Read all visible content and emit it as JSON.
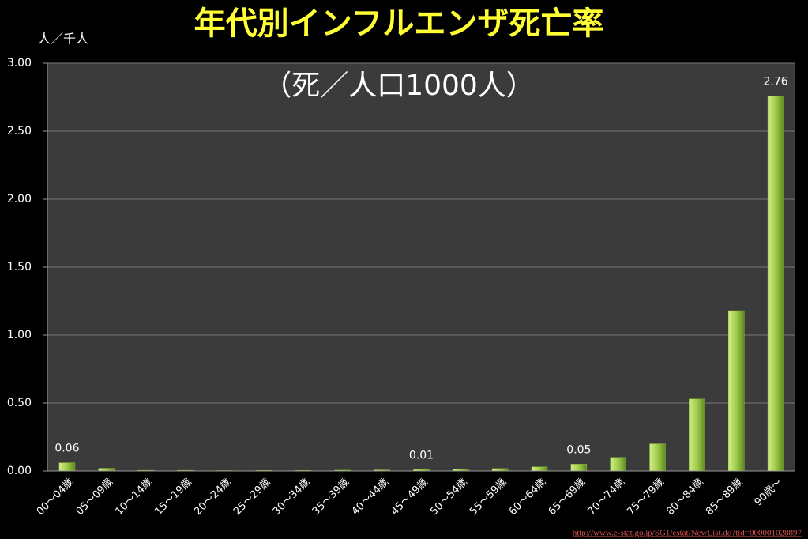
{
  "chart_data": {
    "type": "bar",
    "title": "年代別インフルエンザ死亡率",
    "subtitle": "（死／人口1000人）",
    "y_axis_label": "人／千人",
    "source": "http://www.e-stat.go.jp/SG1/estat/NewList.do?tid=000001028897",
    "categories": [
      "00〜04歳",
      "05〜09歳",
      "10〜14歳",
      "15〜19歳",
      "20〜24歳",
      "25〜29歳",
      "30〜34歳",
      "35〜39歳",
      "40〜44歳",
      "45〜49歳",
      "50〜54歳",
      "55〜59歳",
      "60〜64歳",
      "65〜69歳",
      "70〜74歳",
      "75〜79歳",
      "80〜84歳",
      "85〜89歳",
      "90歳〜"
    ],
    "values": [
      0.06,
      0.02,
      0.005,
      0.005,
      0.003,
      0.004,
      0.004,
      0.006,
      0.008,
      0.01,
      0.012,
      0.018,
      0.03,
      0.05,
      0.1,
      0.2,
      0.53,
      1.18,
      2.76
    ],
    "value_labels": [
      "0.06",
      null,
      null,
      null,
      null,
      null,
      null,
      null,
      null,
      "0.01",
      null,
      null,
      null,
      "0.05",
      null,
      null,
      null,
      null,
      "2.76"
    ],
    "color": "#8fbf3a",
    "ylim": [
      0,
      3
    ],
    "yticks": [
      {
        "value": 0,
        "label": "0.00"
      },
      {
        "value": 0.5,
        "label": "0.50"
      },
      {
        "value": 1,
        "label": "1.00"
      },
      {
        "value": 1.5,
        "label": "1.50"
      },
      {
        "value": 2,
        "label": "2.00"
      },
      {
        "value": 2.5,
        "label": "2.50"
      },
      {
        "value": 3,
        "label": "3.00"
      }
    ],
    "grid": true
  }
}
